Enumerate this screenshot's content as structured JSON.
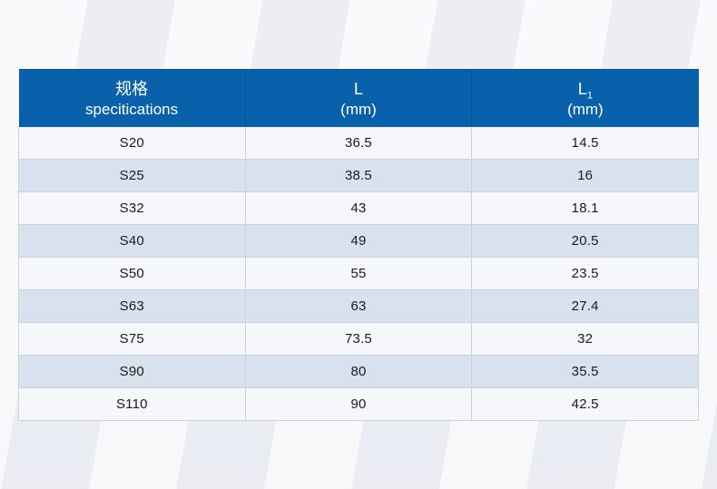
{
  "table": {
    "header": {
      "spec": {
        "line1": "规格",
        "line2": "specitications"
      },
      "l": {
        "base": "L",
        "line2": "(mm)"
      },
      "l1": {
        "base": "L",
        "sub": "1",
        "line2": "(mm)"
      }
    },
    "rows": [
      [
        "S20",
        "36.5",
        "14.5"
      ],
      [
        "S25",
        "38.5",
        "16"
      ],
      [
        "S32",
        "43",
        "18.1"
      ],
      [
        "S40",
        "49",
        "20.5"
      ],
      [
        "S50",
        "55",
        "23.5"
      ],
      [
        "S63",
        "63",
        "27.4"
      ],
      [
        "S75",
        "73.5",
        "32"
      ],
      [
        "S90",
        "80",
        "35.5"
      ],
      [
        "S110",
        "90",
        "42.5"
      ]
    ]
  },
  "colors": {
    "header_bg": "#0961ab",
    "header_divider": "#0a5492",
    "header_text": "#ffffff",
    "row_odd_bg": "#f6f7fa",
    "row_even_bg": "#d8e2ee",
    "row_border": "#cdd2da",
    "body_text": "#1b1b1b",
    "page_bg": "#eff0f5"
  }
}
